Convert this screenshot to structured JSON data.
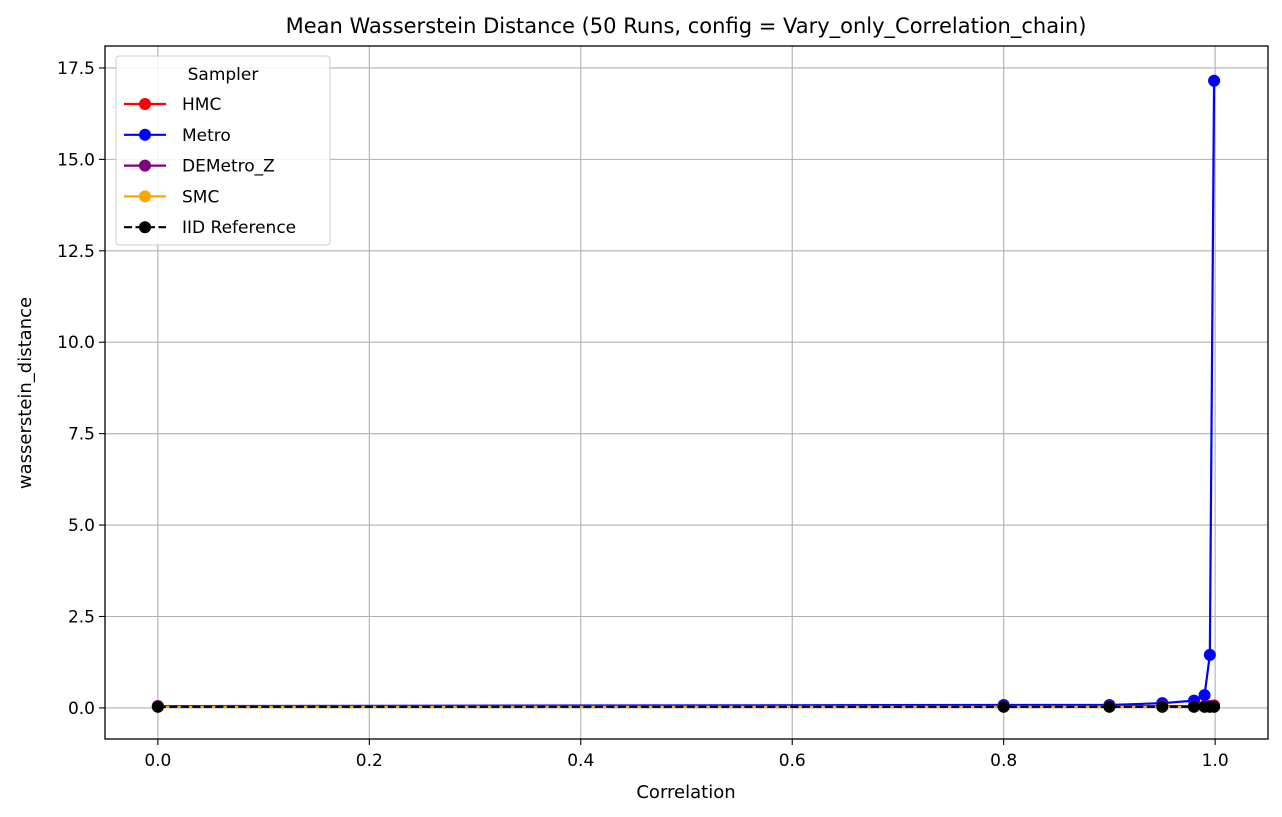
{
  "chart_data": {
    "type": "line",
    "title": "Mean Wasserstein Distance (50 Runs, config = Vary_only_Correlation_chain)",
    "xlabel": "Correlation",
    "ylabel": "wasserstein_distance",
    "xlim": [
      -0.05,
      1.05
    ],
    "ylim": [
      -0.85,
      18.1
    ],
    "xticks": [
      0.0,
      0.2,
      0.4,
      0.6,
      0.8,
      1.0
    ],
    "xtick_labels": [
      "0.0",
      "0.2",
      "0.4",
      "0.6",
      "0.8",
      "1.0"
    ],
    "yticks": [
      0.0,
      2.5,
      5.0,
      7.5,
      10.0,
      12.5,
      15.0,
      17.5
    ],
    "ytick_labels": [
      "0.0",
      "2.5",
      "5.0",
      "7.5",
      "10.0",
      "12.5",
      "15.0",
      "17.5"
    ],
    "grid": true,
    "legend": {
      "title": "Sampler",
      "placement": "top-left"
    },
    "x": [
      0.0,
      0.8,
      0.9,
      0.95,
      0.98,
      0.99,
      0.995,
      0.999
    ],
    "series": [
      {
        "name": "HMC",
        "color": "#ff0000",
        "dashed": false,
        "values": [
          0.05,
          0.05,
          0.05,
          0.05,
          0.05,
          0.05,
          0.05,
          0.07
        ]
      },
      {
        "name": "Metro",
        "color": "#0000ff",
        "dashed": false,
        "values": [
          0.05,
          0.08,
          0.08,
          0.13,
          0.2,
          0.35,
          1.45,
          17.15
        ]
      },
      {
        "name": "DEMetro_Z",
        "color": "#800080",
        "dashed": false,
        "values": [
          0.05,
          0.05,
          0.05,
          0.05,
          0.05,
          0.05,
          0.05,
          0.05
        ]
      },
      {
        "name": "SMC",
        "color": "#ffa500",
        "dashed": false,
        "values": [
          0.03,
          0.03,
          0.03,
          0.03,
          0.03,
          0.03,
          0.03,
          0.03
        ]
      },
      {
        "name": "IID Reference",
        "color": "#000000",
        "dashed": true,
        "values": [
          0.03,
          0.03,
          0.03,
          0.03,
          0.03,
          0.03,
          0.03,
          0.03
        ]
      }
    ]
  }
}
